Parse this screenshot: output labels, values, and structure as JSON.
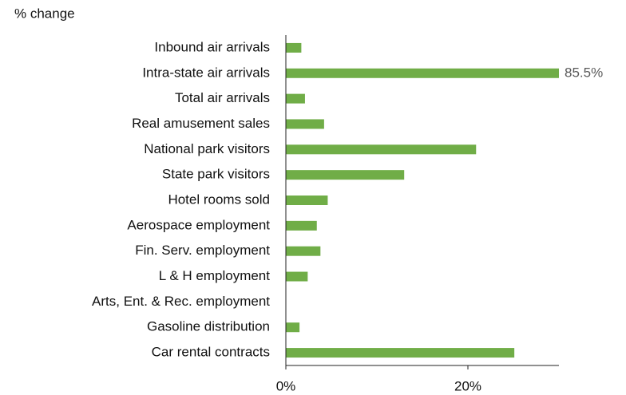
{
  "chart_data": {
    "type": "hbar",
    "ylabel": "% change",
    "categories": [
      "Inbound air arrivals",
      "Intra-state air arrivals",
      "Total air arrivals",
      "Real amusement sales",
      "National park visitors",
      "State park visitors",
      "Hotel rooms sold",
      "Aerospace employment",
      "Fin. Serv. employment",
      "L & H employment",
      "Arts, Ent. & Rec. employment",
      "Gasoline distribution",
      "Car rental contracts"
    ],
    "values": [
      1.7,
      85.5,
      2.1,
      4.2,
      20.9,
      13.0,
      4.6,
      3.4,
      3.8,
      2.4,
      0,
      1.5,
      25.1
    ],
    "value_labels": [
      null,
      "85.5%",
      null,
      null,
      null,
      null,
      null,
      null,
      null,
      null,
      null,
      null,
      null
    ],
    "color": "#70ad47",
    "xlim": [
      0,
      30
    ],
    "xticks": [
      {
        "value": 0,
        "label": "0%"
      },
      {
        "value": 20,
        "label": "20%"
      }
    ]
  }
}
